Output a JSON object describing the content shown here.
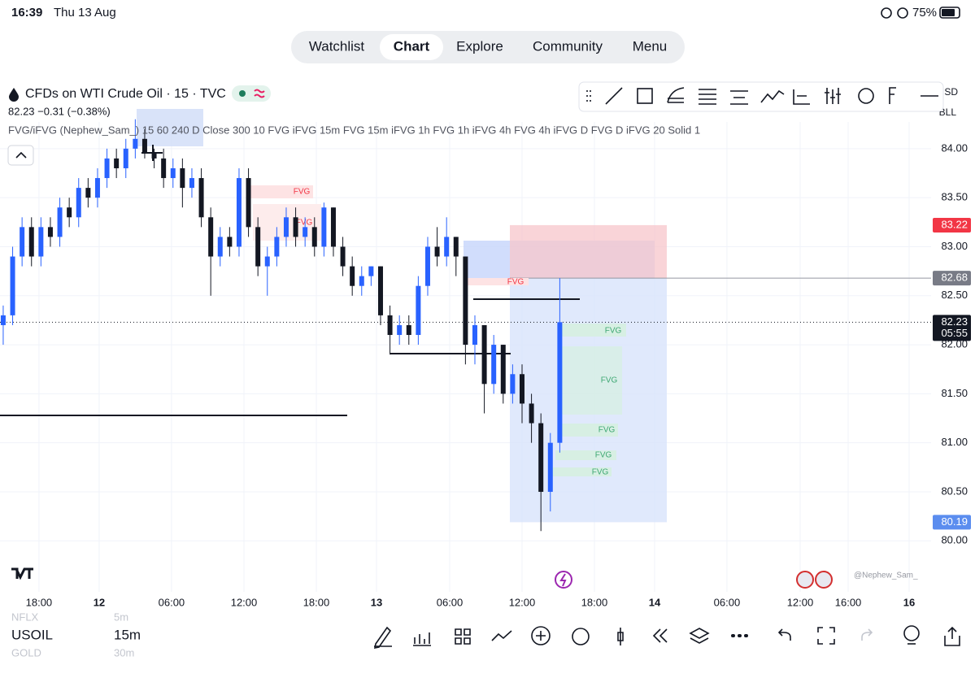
{
  "status_bar": {
    "time": "16:39",
    "date": "Thu 13 Aug",
    "battery": "75%"
  },
  "tabs": [
    "Watchlist",
    "Chart",
    "Explore",
    "Community",
    "Menu"
  ],
  "header": {
    "title": "CFDs on WTI Crude Oil · 15 · TVC",
    "quote": "82.23 −0.31 (−0.38%)",
    "indicator": "FVG/iFVG (Nephew_Sam_) 15 60 240 D Close 300 10 FVG iFVG 15m FVG 15m iFVG 1h FVG 1h iFVG 4h FVG 4h iFVG D FVG D iFVG 20 Solid 1"
  },
  "axis_units": [
    "USD",
    "BLL"
  ],
  "fvg_labels": [
    "FVG",
    "FVG",
    "FVG",
    "FVG",
    "FVG",
    "FVG",
    "FVG",
    "FVG"
  ],
  "watermark": "@Nephew_Sam_",
  "symbols": [
    {
      "symbol": "NFLX",
      "interval": "5m"
    },
    {
      "symbol": "USOIL",
      "interval": "15m"
    },
    {
      "symbol": "GOLD",
      "interval": "30m"
    }
  ],
  "chart": {
    "type": "candlestick",
    "up_color": "#2962ff",
    "down_color": "#131722",
    "grid": true,
    "xlim": [
      -0.34,
      98.36
    ],
    "ylim": [
      79.48,
      84.77
    ],
    "yticks": [
      {
        "value": 84,
        "label": "84.00"
      },
      {
        "value": 83.5,
        "label": "83.50"
      },
      {
        "value": 83,
        "label": "83.00"
      },
      {
        "value": 82.5,
        "label": "82.50"
      },
      {
        "value": 82,
        "label": "82.00"
      },
      {
        "value": 81.5,
        "label": "81.50"
      },
      {
        "value": 81,
        "label": "81.00"
      },
      {
        "value": 80.5,
        "label": "80.50"
      },
      {
        "value": 80,
        "label": "80.00"
      }
    ],
    "xticks": [
      {
        "value": 3.79,
        "label": "18:00"
      },
      {
        "value": 10.17,
        "label": "12"
      },
      {
        "value": 17.84,
        "label": "06:00"
      },
      {
        "value": 25.52,
        "label": "12:00"
      },
      {
        "value": 33.19,
        "label": "18:00"
      },
      {
        "value": 39.57,
        "label": "13"
      },
      {
        "value": 47.33,
        "label": "06:00"
      },
      {
        "value": 55.0,
        "label": "12:00"
      },
      {
        "value": 62.67,
        "label": "18:00"
      },
      {
        "value": 69.05,
        "label": "14"
      },
      {
        "value": 76.72,
        "label": "06:00"
      },
      {
        "value": 84.48,
        "label": "12:00"
      },
      {
        "value": 89.57,
        "label": "16:00"
      },
      {
        "value": 96.03,
        "label": "16"
      }
    ],
    "candles": [
      [
        82.2,
        82.4,
        82.0,
        82.3
      ],
      [
        82.3,
        83.0,
        82.2,
        82.9
      ],
      [
        82.9,
        83.3,
        82.8,
        83.2
      ],
      [
        83.2,
        83.3,
        82.8,
        82.9
      ],
      [
        82.9,
        83.3,
        82.8,
        83.2
      ],
      [
        83.2,
        83.3,
        83.0,
        83.1
      ],
      [
        83.1,
        83.5,
        83.0,
        83.4
      ],
      [
        83.4,
        83.5,
        83.2,
        83.3
      ],
      [
        83.3,
        83.7,
        83.2,
        83.6
      ],
      [
        83.6,
        83.7,
        83.4,
        83.5
      ],
      [
        83.5,
        83.8,
        83.4,
        83.7
      ],
      [
        83.7,
        84.0,
        83.6,
        83.9
      ],
      [
        83.9,
        84.0,
        83.7,
        83.8
      ],
      [
        83.8,
        84.1,
        83.7,
        84.0
      ],
      [
        84.0,
        84.3,
        83.9,
        84.1
      ],
      [
        84.1,
        84.2,
        83.9,
        83.95
      ],
      [
        83.95,
        84.0,
        83.8,
        83.9
      ],
      [
        83.9,
        84.0,
        83.6,
        83.7
      ],
      [
        83.7,
        83.9,
        83.6,
        83.8
      ],
      [
        83.8,
        83.9,
        83.4,
        83.6
      ],
      [
        83.6,
        83.8,
        83.5,
        83.7
      ],
      [
        83.7,
        83.8,
        83.2,
        83.3
      ],
      [
        83.3,
        83.4,
        82.5,
        82.9
      ],
      [
        82.9,
        83.2,
        82.8,
        83.1
      ],
      [
        83.1,
        83.2,
        82.9,
        83.0
      ],
      [
        83.0,
        83.8,
        82.9,
        83.7
      ],
      [
        83.7,
        83.8,
        83.1,
        83.2
      ],
      [
        83.2,
        83.3,
        82.7,
        82.8
      ],
      [
        82.8,
        83.0,
        82.5,
        82.9
      ],
      [
        82.9,
        83.2,
        82.8,
        83.1
      ],
      [
        83.1,
        83.4,
        83.0,
        83.3
      ],
      [
        83.3,
        83.4,
        83.0,
        83.1
      ],
      [
        83.1,
        83.3,
        83.0,
        83.2
      ],
      [
        83.2,
        83.3,
        82.9,
        83.0
      ],
      [
        83.0,
        83.45,
        82.9,
        83.4
      ],
      [
        83.4,
        83.4,
        82.9,
        83.0
      ],
      [
        83.0,
        83.1,
        82.7,
        82.8
      ],
      [
        82.8,
        82.9,
        82.5,
        82.6
      ],
      [
        82.6,
        82.8,
        82.5,
        82.7
      ],
      [
        82.7,
        82.8,
        82.6,
        82.8
      ],
      [
        82.8,
        82.8,
        82.2,
        82.3
      ],
      [
        82.3,
        82.4,
        81.9,
        82.1
      ],
      [
        82.1,
        82.3,
        82.0,
        82.2
      ],
      [
        82.2,
        82.3,
        82.0,
        82.1
      ],
      [
        82.1,
        82.7,
        82.0,
        82.6
      ],
      [
        82.6,
        83.1,
        82.5,
        83.0
      ],
      [
        83.0,
        83.2,
        82.8,
        82.9
      ],
      [
        82.9,
        83.3,
        82.8,
        83.1
      ],
      [
        83.1,
        83.1,
        82.7,
        82.9
      ],
      [
        82.9,
        82.9,
        81.8,
        82.0
      ],
      [
        82.0,
        82.3,
        81.8,
        82.2
      ],
      [
        82.2,
        82.2,
        81.3,
        81.6
      ],
      [
        81.6,
        82.1,
        81.5,
        82.0
      ],
      [
        82.0,
        82.0,
        81.4,
        81.5
      ],
      [
        81.5,
        81.8,
        81.4,
        81.7
      ],
      [
        81.7,
        81.8,
        81.2,
        81.4
      ],
      [
        81.4,
        81.5,
        81.0,
        81.2
      ],
      [
        81.2,
        81.3,
        80.1,
        80.5
      ],
      [
        80.5,
        81.1,
        80.3,
        81.0
      ],
      [
        81.0,
        82.68,
        80.9,
        82.23
      ]
    ],
    "price_markers": [
      {
        "value": 83.22,
        "color": "#f23645"
      },
      {
        "value": 82.68,
        "color": "#787b86"
      },
      {
        "value": 82.23,
        "color": "#131722",
        "countdown": "05:55"
      },
      {
        "value": 80.19,
        "color": "#5b8def"
      }
    ]
  }
}
